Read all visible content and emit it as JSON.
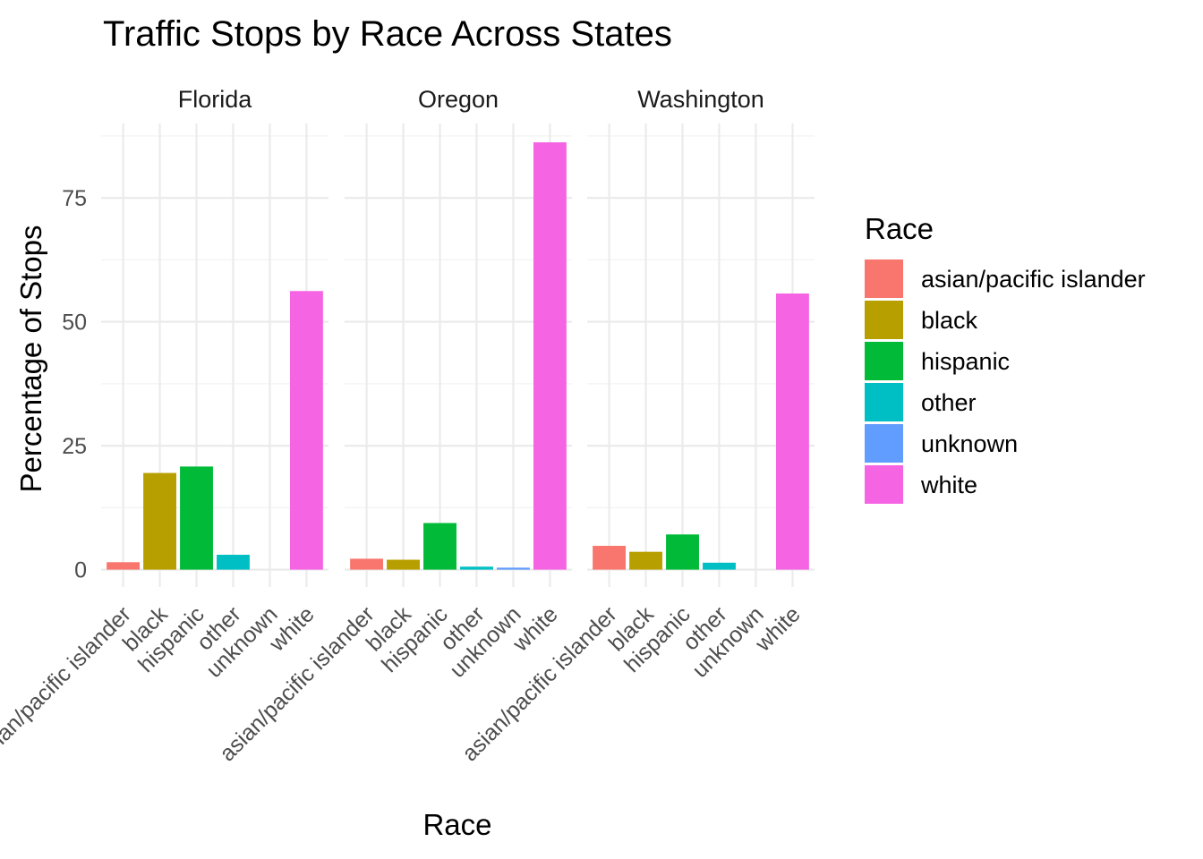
{
  "chart_data": {
    "type": "bar",
    "title": "Traffic Stops by Race Across States",
    "xlabel": "Race",
    "ylabel": "Percentage of Stops",
    "ylim": [
      -3.5,
      90
    ],
    "yticks": [
      0,
      25,
      50,
      75
    ],
    "categories": [
      "asian/pacific islander",
      "black",
      "hispanic",
      "other",
      "unknown",
      "white"
    ],
    "facets": [
      {
        "name": "Florida",
        "values": [
          1.5,
          19.5,
          20.8,
          3.0,
          0.0,
          56.2
        ]
      },
      {
        "name": "Oregon",
        "values": [
          2.2,
          2.0,
          9.4,
          0.6,
          0.4,
          86.2
        ]
      },
      {
        "name": "Washington",
        "values": [
          4.8,
          3.6,
          7.1,
          1.4,
          0.0,
          55.7
        ]
      }
    ],
    "legend": {
      "title": "Race",
      "position": "right",
      "entries": [
        "asian/pacific islander",
        "black",
        "hispanic",
        "other",
        "unknown",
        "white"
      ]
    },
    "colors": {
      "asian/pacific islander": "#F8766D",
      "black": "#B79F00",
      "hispanic": "#00BA38",
      "other": "#00BFC4",
      "unknown": "#619CFF",
      "white": "#F564E3"
    },
    "grid": true
  }
}
